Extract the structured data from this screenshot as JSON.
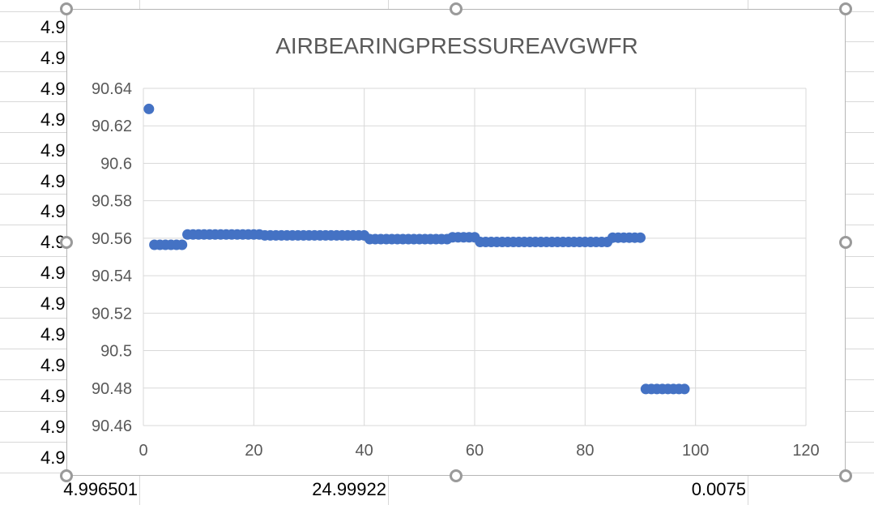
{
  "sheet": {
    "left_column_values": [
      "4.9",
      "4.9",
      "4.9",
      "4.9",
      "4.9",
      "4.9",
      "4.9",
      "4.9",
      "4.9",
      "4.9",
      "4.9",
      "4.9",
      "4.9",
      "4.9",
      "4.9"
    ],
    "bottom_row": [
      "4.996501",
      "24.99922",
      "0.0075"
    ]
  },
  "chart_data": {
    "type": "scatter",
    "title": "AIRBEARINGPRESSUREAVGWFR",
    "xlim": [
      0,
      120
    ],
    "ylim": [
      90.46,
      90.64
    ],
    "x_ticks": [
      "0",
      "20",
      "40",
      "60",
      "80",
      "100",
      "120"
    ],
    "y_ticks": [
      "90.46",
      "90.48",
      "90.5",
      "90.52",
      "90.54",
      "90.56",
      "90.58",
      "90.6",
      "90.62",
      "90.64"
    ],
    "grid": true,
    "legend": "none",
    "marker_color": "#4472C4",
    "x": [
      1,
      2,
      3,
      4,
      5,
      6,
      7,
      8,
      9,
      10,
      11,
      12,
      13,
      14,
      15,
      16,
      17,
      18,
      19,
      20,
      21,
      22,
      23,
      24,
      25,
      26,
      27,
      28,
      29,
      30,
      31,
      32,
      33,
      34,
      35,
      36,
      37,
      38,
      39,
      40,
      41,
      42,
      43,
      44,
      45,
      46,
      47,
      48,
      49,
      50,
      51,
      52,
      53,
      54,
      55,
      56,
      57,
      58,
      59,
      60,
      61,
      62,
      63,
      64,
      65,
      66,
      67,
      68,
      69,
      70,
      71,
      72,
      73,
      74,
      75,
      76,
      77,
      78,
      79,
      80,
      81,
      82,
      83,
      84,
      85,
      86,
      87,
      88,
      89,
      90,
      91,
      92,
      93,
      94,
      95,
      96,
      97,
      98
    ],
    "y": [
      90.629,
      90.5565,
      90.5565,
      90.5565,
      90.5565,
      90.5565,
      90.5565,
      90.562,
      90.562,
      90.562,
      90.562,
      90.562,
      90.562,
      90.562,
      90.562,
      90.562,
      90.562,
      90.562,
      90.562,
      90.562,
      90.562,
      90.5615,
      90.5615,
      90.5615,
      90.5615,
      90.5615,
      90.5615,
      90.5615,
      90.5615,
      90.5615,
      90.5615,
      90.5615,
      90.5615,
      90.5615,
      90.5615,
      90.5615,
      90.5615,
      90.5615,
      90.5615,
      90.5615,
      90.5595,
      90.5595,
      90.5595,
      90.5595,
      90.5595,
      90.5595,
      90.5595,
      90.5595,
      90.5595,
      90.5595,
      90.5595,
      90.5595,
      90.5595,
      90.5595,
      90.5595,
      90.5605,
      90.5605,
      90.5605,
      90.5605,
      90.5605,
      90.558,
      90.558,
      90.558,
      90.558,
      90.558,
      90.558,
      90.558,
      90.558,
      90.558,
      90.558,
      90.558,
      90.558,
      90.558,
      90.558,
      90.558,
      90.558,
      90.558,
      90.558,
      90.558,
      90.558,
      90.558,
      90.558,
      90.558,
      90.558,
      90.5603,
      90.5603,
      90.5603,
      90.5603,
      90.5603,
      90.5603,
      90.4795,
      90.4795,
      90.4795,
      90.4795,
      90.4795,
      90.4795,
      90.4795,
      90.4795
    ]
  }
}
